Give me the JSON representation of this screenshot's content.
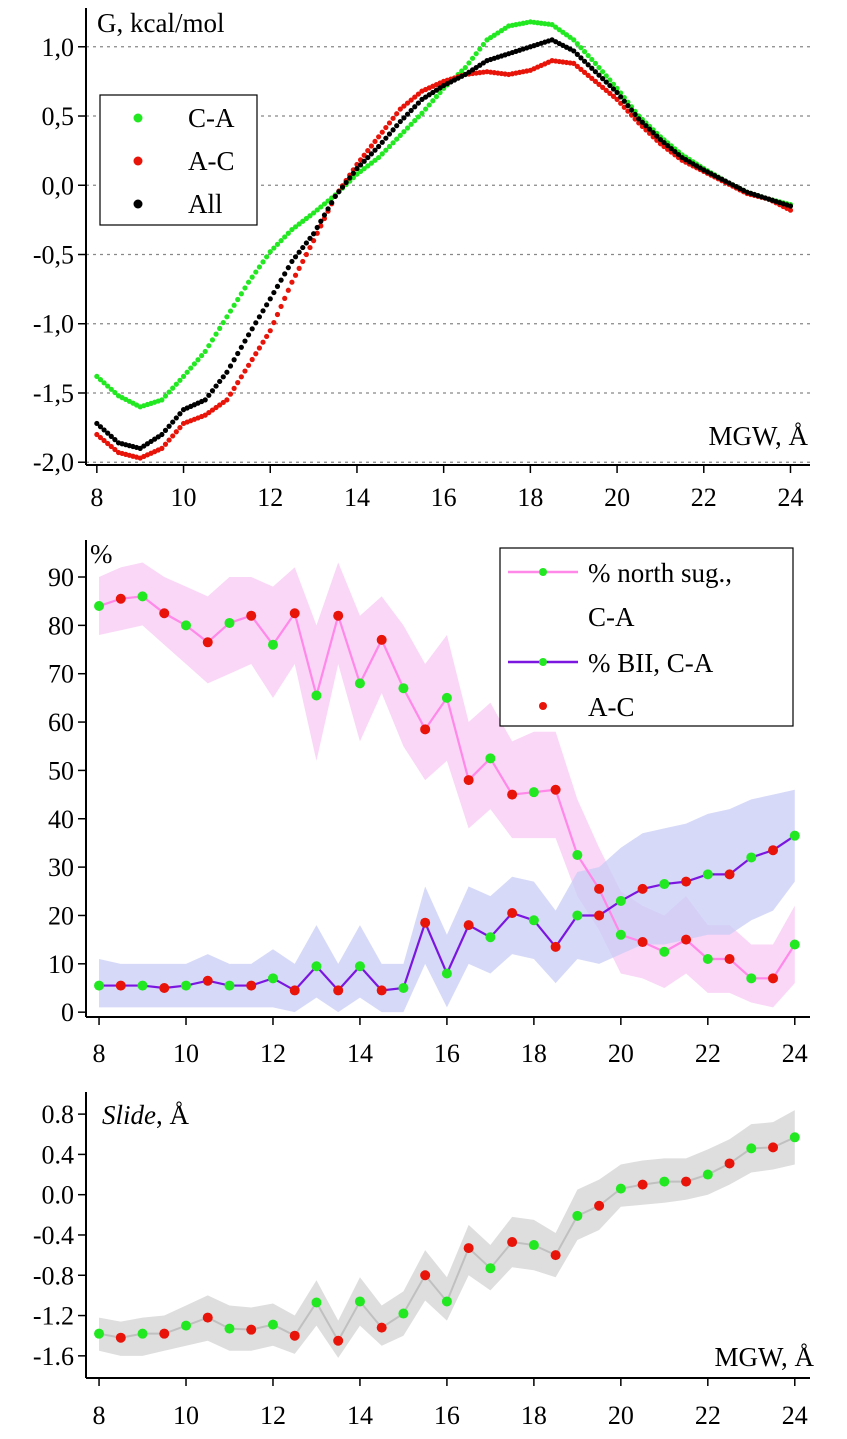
{
  "chart_data": [
    {
      "type": "scatter",
      "title": "",
      "ylabel": "G, kcal/mol",
      "xlabel": "MGW, Å",
      "xlim": [
        7.75,
        24.45
      ],
      "ylim": [
        -2.02,
        1.28
      ],
      "xticks": [
        "8",
        "10",
        "12",
        "14",
        "16",
        "18",
        "20",
        "22",
        "24"
      ],
      "yticks": [
        "1,0",
        "0,5",
        "0,0",
        "-0,5",
        "-1,0",
        "-1,5",
        "-2,0"
      ],
      "ytick_values": [
        1.0,
        0.5,
        0.0,
        -0.5,
        -1.0,
        -1.5,
        -2.0
      ],
      "grid": "horizontal dashed",
      "legend_position": "top-left",
      "legend": [
        "C-A",
        "A-C",
        "All"
      ],
      "colors": {
        "C-A": "#22e822",
        "A-C": "#e8140a",
        "All": "#000000"
      },
      "series": [
        {
          "name": "C-A",
          "x": [
            8.0,
            8.5,
            9.0,
            9.5,
            10.0,
            10.5,
            11.0,
            11.5,
            12.0,
            12.5,
            13.0,
            13.5,
            14.0,
            14.5,
            15.0,
            15.5,
            16.0,
            16.5,
            17.0,
            17.5,
            18.0,
            18.5,
            19.0,
            19.5,
            20.0,
            20.5,
            21.0,
            21.5,
            22.0,
            22.5,
            23.0,
            23.5,
            24.0
          ],
          "y": [
            -1.38,
            -1.52,
            -1.6,
            -1.55,
            -1.38,
            -1.2,
            -0.95,
            -0.7,
            -0.48,
            -0.32,
            -0.2,
            -0.07,
            0.08,
            0.2,
            0.36,
            0.52,
            0.7,
            0.85,
            1.05,
            1.15,
            1.18,
            1.16,
            1.05,
            0.88,
            0.7,
            0.5,
            0.35,
            0.22,
            0.12,
            0.03,
            -0.05,
            -0.1,
            -0.14
          ]
        },
        {
          "name": "A-C",
          "x": [
            8.0,
            8.5,
            9.0,
            9.5,
            10.0,
            10.5,
            11.0,
            11.5,
            12.0,
            12.5,
            13.0,
            13.5,
            14.0,
            14.5,
            15.0,
            15.5,
            16.0,
            16.5,
            17.0,
            17.5,
            18.0,
            18.5,
            19.0,
            19.5,
            20.0,
            20.5,
            21.0,
            21.5,
            22.0,
            22.5,
            23.0,
            23.5,
            24.0
          ],
          "y": [
            -1.8,
            -1.93,
            -1.97,
            -1.9,
            -1.72,
            -1.66,
            -1.55,
            -1.3,
            -1.05,
            -0.7,
            -0.4,
            -0.08,
            0.15,
            0.35,
            0.55,
            0.68,
            0.75,
            0.8,
            0.82,
            0.8,
            0.83,
            0.9,
            0.88,
            0.75,
            0.62,
            0.45,
            0.3,
            0.18,
            0.1,
            0.02,
            -0.06,
            -0.1,
            -0.18
          ]
        },
        {
          "name": "All",
          "x": [
            8.0,
            8.5,
            9.0,
            9.5,
            10.0,
            10.5,
            11.0,
            11.5,
            12.0,
            12.5,
            13.0,
            13.5,
            14.0,
            14.5,
            15.0,
            15.5,
            16.0,
            16.5,
            17.0,
            17.5,
            18.0,
            18.5,
            19.0,
            19.5,
            20.0,
            20.5,
            21.0,
            21.5,
            22.0,
            22.5,
            23.0,
            23.5,
            24.0
          ],
          "y": [
            -1.72,
            -1.86,
            -1.9,
            -1.8,
            -1.62,
            -1.55,
            -1.35,
            -1.08,
            -0.82,
            -0.55,
            -0.35,
            -0.08,
            0.12,
            0.28,
            0.46,
            0.62,
            0.72,
            0.8,
            0.9,
            0.95,
            1.0,
            1.05,
            0.97,
            0.82,
            0.67,
            0.48,
            0.33,
            0.2,
            0.11,
            0.03,
            -0.05,
            -0.1,
            -0.15
          ]
        }
      ]
    },
    {
      "type": "line",
      "title": "",
      "ylabel": "%",
      "xlabel": "",
      "xlim": [
        7.7,
        24.35
      ],
      "ylim": [
        -1,
        96
      ],
      "xticks": [
        "8",
        "10",
        "12",
        "14",
        "16",
        "18",
        "20",
        "22",
        "24"
      ],
      "yticks": [
        "90",
        "80",
        "70",
        "60",
        "50",
        "40",
        "30",
        "20",
        "10",
        "0"
      ],
      "ytick_values": [
        90,
        80,
        70,
        60,
        50,
        40,
        30,
        20,
        10,
        0
      ],
      "grid": "off",
      "legend_position": "top-right",
      "legend": [
        "% north sug.,",
        "C-A",
        "% BII, C-A",
        "A-C"
      ],
      "colors": {
        "north": "#ff88e8",
        "north_band": "#f8c8f4",
        "bii": "#7a16e0",
        "bii_band": "#c8ccf6",
        "C-A": "#22e822",
        "A-C": "#e8140a"
      },
      "x": [
        8.0,
        8.5,
        9.0,
        9.5,
        10.0,
        10.5,
        11.0,
        11.5,
        12.0,
        12.5,
        13.0,
        13.5,
        14.0,
        14.5,
        15.0,
        15.5,
        16.0,
        16.5,
        17.0,
        17.5,
        18.0,
        18.5,
        19.0,
        19.5,
        20.0,
        20.5,
        21.0,
        21.5,
        22.0,
        22.5,
        23.0,
        23.5,
        24.0
      ],
      "point_class": [
        "C-A",
        "A-C",
        "C-A",
        "A-C",
        "C-A",
        "A-C",
        "C-A",
        "A-C",
        "C-A",
        "A-C",
        "C-A",
        "A-C",
        "C-A",
        "A-C",
        "C-A",
        "A-C",
        "C-A",
        "A-C",
        "C-A",
        "A-C",
        "C-A",
        "A-C",
        "C-A",
        "A-C",
        "C-A",
        "A-C",
        "C-A",
        "A-C",
        "C-A",
        "A-C",
        "C-A",
        "A-C",
        "C-A"
      ],
      "series": [
        {
          "name": "% north sug., C-A",
          "values": [
            84,
            85.5,
            86,
            82.5,
            80,
            76.5,
            80.5,
            82,
            76,
            82.5,
            65.5,
            82,
            68,
            77,
            67,
            58.5,
            65,
            48,
            52.5,
            45,
            45.5,
            46,
            32.5,
            25.5,
            16,
            14.5,
            12.5,
            15,
            11,
            11,
            7,
            7,
            14
          ],
          "band_low": [
            78,
            79,
            80,
            76,
            72,
            68,
            70,
            72,
            65,
            72,
            52,
            72,
            56,
            66,
            55,
            48,
            52,
            38,
            42,
            36,
            36,
            36,
            24,
            17,
            8,
            7,
            5,
            8,
            4,
            4,
            2,
            1,
            6
          ],
          "band_high": [
            90,
            92,
            93,
            90,
            88,
            86,
            90,
            90,
            88,
            92,
            80,
            93,
            82,
            86,
            80,
            72,
            78,
            60,
            64,
            56,
            58,
            58,
            44,
            34,
            25,
            22,
            20,
            24,
            18,
            18,
            14,
            14,
            22
          ]
        },
        {
          "name": "% BII, C-A",
          "values": [
            5.5,
            5.5,
            5.5,
            5,
            5.5,
            6.5,
            5.5,
            5.5,
            7,
            4.5,
            9.5,
            4.5,
            9.5,
            4.5,
            5,
            18.5,
            8,
            18,
            15.5,
            20.5,
            19,
            13.5,
            20,
            20,
            23,
            25.5,
            26.5,
            27,
            28.5,
            28.5,
            32,
            33.5,
            36.5
          ],
          "band_low": [
            1,
            1,
            1,
            1,
            1,
            1,
            1,
            1,
            1,
            0,
            3,
            0,
            3,
            0,
            0,
            10,
            1,
            10,
            8,
            12,
            11,
            6,
            11,
            10,
            12,
            14,
            14,
            15,
            16,
            16,
            19,
            21,
            27
          ],
          "band_high": [
            11,
            10,
            10,
            10,
            10,
            12,
            10,
            10,
            13,
            10,
            18,
            10,
            18,
            10,
            10,
            26,
            16,
            26,
            24,
            28,
            27,
            21,
            29,
            30,
            34,
            37,
            38,
            39,
            41,
            42,
            44,
            45,
            46
          ]
        }
      ]
    },
    {
      "type": "line",
      "title": "",
      "ylabel": "Slide, Å",
      "xlabel": "MGW, Å",
      "xlim": [
        7.7,
        24.35
      ],
      "ylim": [
        -1.82,
        0.96
      ],
      "xticks": [
        "8",
        "10",
        "12",
        "14",
        "16",
        "18",
        "20",
        "22",
        "24"
      ],
      "yticks": [
        "0.8",
        "0.4",
        "0.0",
        "-0.4",
        "-0.8",
        "-1.2",
        "-1.6"
      ],
      "ytick_values": [
        0.8,
        0.4,
        0.0,
        -0.4,
        -0.8,
        -1.2,
        -1.6
      ],
      "grid": "off",
      "colors": {
        "line": "#c0c0c0",
        "band": "#dedede",
        "C-A": "#22e822",
        "A-C": "#e8140a"
      },
      "x": [
        8.0,
        8.5,
        9.0,
        9.5,
        10.0,
        10.5,
        11.0,
        11.5,
        12.0,
        12.5,
        13.0,
        13.5,
        14.0,
        14.5,
        15.0,
        15.5,
        16.0,
        16.5,
        17.0,
        17.5,
        18.0,
        18.5,
        19.0,
        19.5,
        20.0,
        20.5,
        21.0,
        21.5,
        22.0,
        22.5,
        23.0,
        23.5,
        24.0
      ],
      "point_class": [
        "C-A",
        "A-C",
        "C-A",
        "A-C",
        "C-A",
        "A-C",
        "C-A",
        "A-C",
        "C-A",
        "A-C",
        "C-A",
        "A-C",
        "C-A",
        "A-C",
        "C-A",
        "A-C",
        "C-A",
        "A-C",
        "C-A",
        "A-C",
        "C-A",
        "A-C",
        "C-A",
        "A-C",
        "C-A",
        "A-C",
        "C-A",
        "A-C",
        "C-A",
        "A-C",
        "C-A",
        "A-C",
        "C-A"
      ],
      "values": [
        -1.38,
        -1.42,
        -1.38,
        -1.38,
        -1.3,
        -1.22,
        -1.33,
        -1.34,
        -1.29,
        -1.4,
        -1.07,
        -1.45,
        -1.06,
        -1.32,
        -1.18,
        -0.8,
        -1.06,
        -0.53,
        -0.73,
        -0.47,
        -0.5,
        -0.6,
        -0.21,
        -0.11,
        0.06,
        0.1,
        0.13,
        0.13,
        0.2,
        0.31,
        0.46,
        0.47,
        0.57
      ],
      "band_low": [
        -1.55,
        -1.6,
        -1.6,
        -1.55,
        -1.5,
        -1.45,
        -1.55,
        -1.55,
        -1.5,
        -1.58,
        -1.3,
        -1.62,
        -1.3,
        -1.5,
        -1.4,
        -1.05,
        -1.25,
        -0.8,
        -0.95,
        -0.72,
        -0.75,
        -0.82,
        -0.45,
        -0.35,
        -0.12,
        -0.1,
        -0.08,
        -0.05,
        0.0,
        0.1,
        0.22,
        0.25,
        0.3
      ],
      "band_high": [
        -1.22,
        -1.26,
        -1.22,
        -1.2,
        -1.1,
        -1.0,
        -1.1,
        -1.12,
        -1.08,
        -1.2,
        -0.85,
        -1.25,
        -0.82,
        -1.1,
        -0.96,
        -0.55,
        -0.82,
        -0.3,
        -0.5,
        -0.22,
        -0.25,
        -0.38,
        0.05,
        0.15,
        0.3,
        0.34,
        0.36,
        0.36,
        0.45,
        0.55,
        0.7,
        0.72,
        0.84
      ]
    }
  ]
}
